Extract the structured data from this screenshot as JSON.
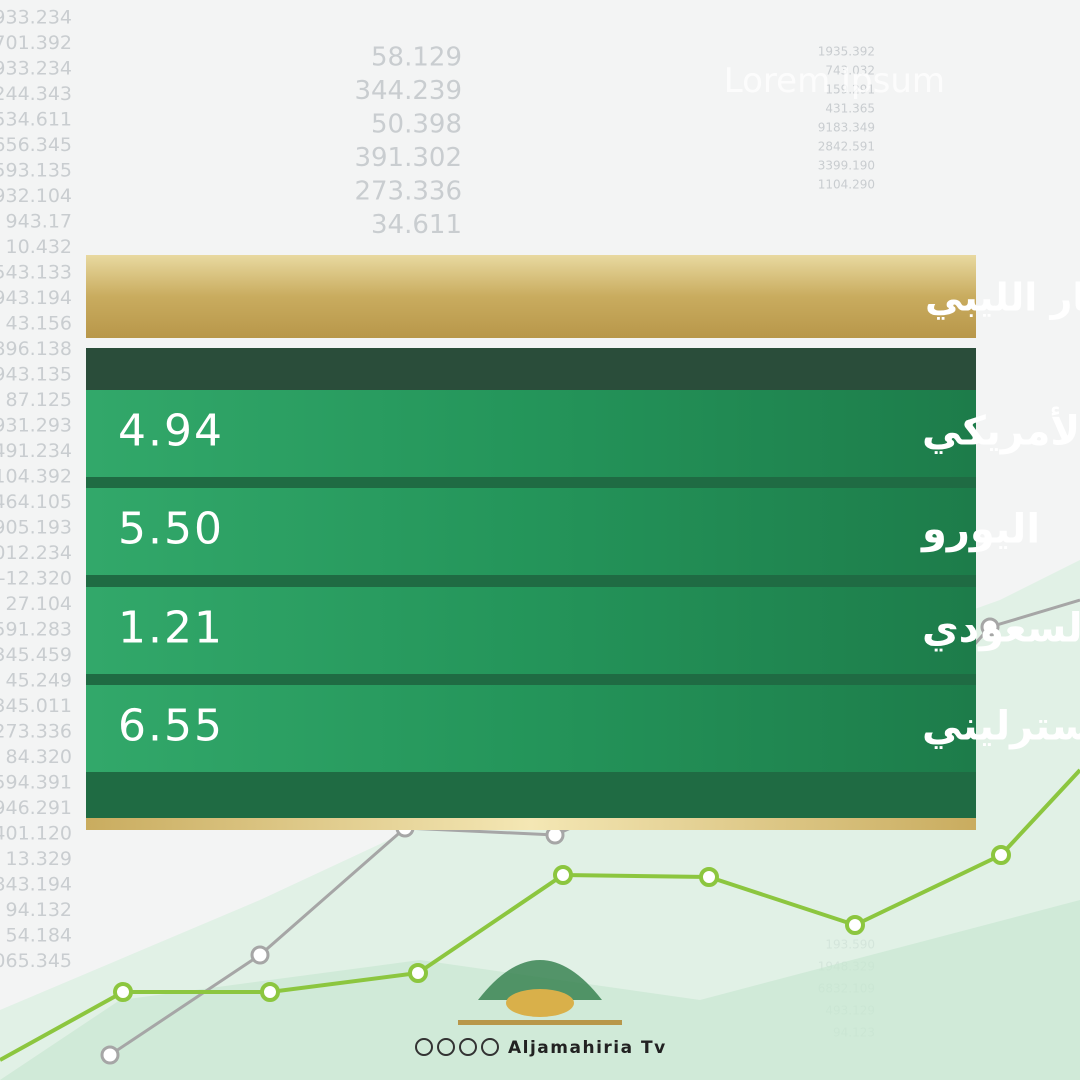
{
  "header": {
    "title": "أسعار العملات مقابل الدينار الليبي",
    "watermark": "Lorem Ipsum"
  },
  "table": {
    "rows": [
      [
        "الدولار الأمريكي",
        "4.94"
      ],
      [
        "اليورو",
        "5.50"
      ],
      [
        "الريال السعودي",
        "1.21"
      ],
      [
        "جنيه استرليني",
        "6.55"
      ]
    ]
  },
  "background_numbers": {
    "left": [
      "933.234",
      "701.392",
      "933.234",
      "244.343",
      "534.611",
      "656.345",
      "593.135",
      "932.104",
      "943.17",
      "10.432",
      "543.133",
      "943.194",
      "43.156",
      "896.138",
      "943.135",
      "87.125",
      "931.293",
      "491.234",
      "104.392",
      "464.105",
      "905.193",
      "012.234",
      "-12.320",
      "27.104",
      "591.283",
      "345.459",
      "45.249",
      "345.011",
      "273.336",
      "84.320",
      "594.391",
      "946.291",
      "401.120",
      "13.329",
      "843.194",
      "94.132",
      "54.184",
      "065.345"
    ],
    "center": [
      "58.129",
      "344.239",
      "50.398",
      "391.302",
      "273.336",
      "34.611"
    ],
    "right": [
      "1935.392",
      "743.032",
      "159.291",
      "431.365",
      "9183.349",
      "2842.591",
      "3399.190",
      "1104.290"
    ],
    "lower_right": [
      "193.590",
      "1948.329",
      "6832.109",
      "493.129",
      "94.123"
    ]
  },
  "footer": {
    "brand": "Aljamahiria Tv"
  }
}
